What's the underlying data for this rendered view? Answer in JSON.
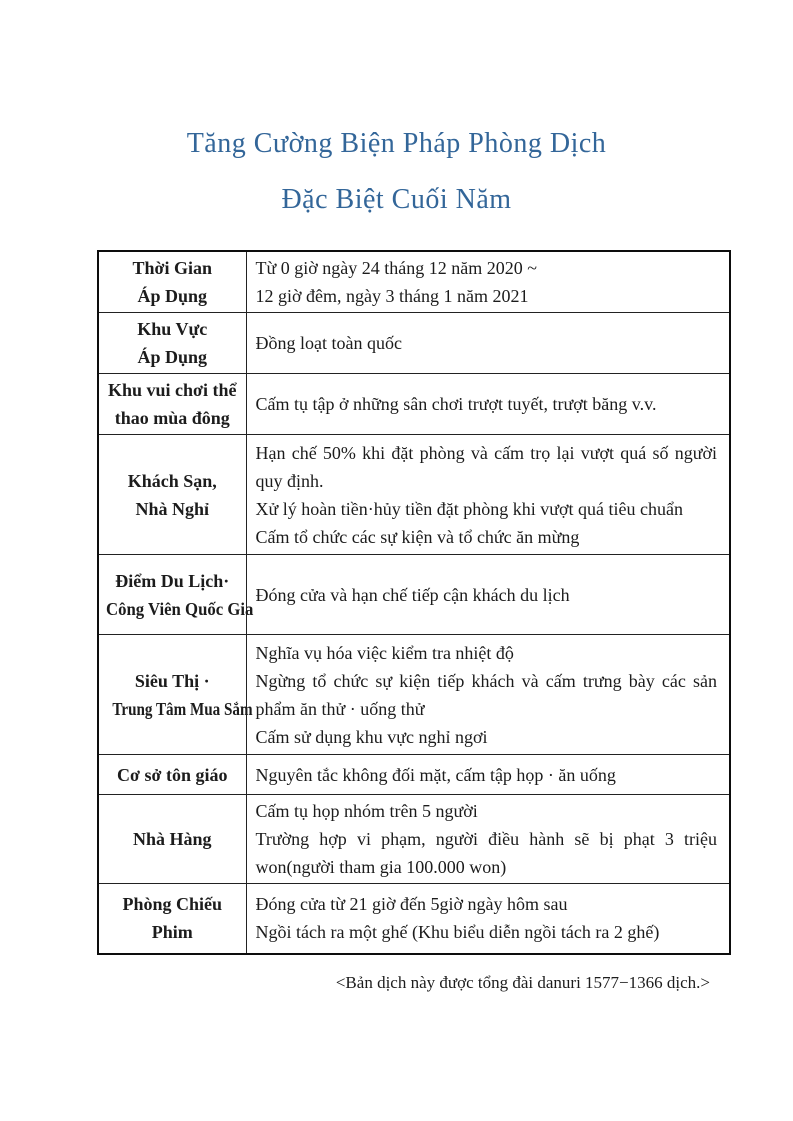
{
  "title": {
    "line1": "Tăng Cường Biện Pháp Phòng Dịch",
    "line2": "Đặc Biệt Cuối Năm",
    "color": "#336699"
  },
  "table": {
    "rows": [
      {
        "label_lines": [
          "Thời Gian",
          "Áp Dụng"
        ],
        "content": [
          "Từ 0 giờ ngày 24 tháng 12 năm 2020 ~",
          "12 giờ đêm, ngày 3 tháng 1 năm 2021"
        ]
      },
      {
        "label_lines": [
          "Khu Vực",
          "Áp Dụng"
        ],
        "content": [
          "Đồng loạt toàn quốc"
        ]
      },
      {
        "label_lines": [
          "Khu vui chơi thể",
          "thao mùa đông"
        ],
        "content": [
          "Cấm tụ tập ở những sân chơi trượt tuyết, trượt băng v.v."
        ]
      },
      {
        "label_lines": [
          "Khách Sạn,",
          "Nhà Nghỉ"
        ],
        "content": [
          "Hạn chế 50% khi đặt phòng và cấm trọ lại vượt quá số người quy định.",
          "Xử lý hoàn tiền·hủy tiền đặt phòng khi vượt quá tiêu chuẩn",
          "Cấm tổ chức các sự kiện và tổ chức ăn mừng"
        ]
      },
      {
        "label_lines": [
          "Điểm Du Lịch·",
          "Công Viên Quốc Gia"
        ],
        "content": [
          "Đóng cửa và hạn chế tiếp cận khách du lịch"
        ]
      },
      {
        "label_lines": [
          "Siêu Thị ·",
          "Trung Tâm Mua Sắm"
        ],
        "content": [
          "Nghĩa vụ hóa việc kiểm tra nhiệt độ",
          "Ngừng tổ chức sự kiện tiếp khách và cấm trưng bày các sản phẩm ăn thử · uống thử",
          "Cấm sử dụng khu vực nghỉ ngơi"
        ]
      },
      {
        "label_lines": [
          "Cơ sở tôn giáo"
        ],
        "content": [
          "Nguyên tắc không đối mặt, cấm tập họp · ăn uống"
        ]
      },
      {
        "label_lines": [
          "Nhà Hàng"
        ],
        "content": [
          "Cấm tụ họp nhóm trên 5 người",
          "Trường hợp vi phạm, người điều hành sẽ bị phạt 3 triệu won(người tham gia 100.000 won)"
        ]
      },
      {
        "label_lines": [
          "Phòng Chiếu",
          "Phim"
        ],
        "content": [
          "Đóng cửa từ 21 giờ đến 5giờ ngày hôm sau",
          "Ngồi tách ra một ghế (Khu biểu diễn ngồi tách ra 2 ghế)"
        ]
      }
    ]
  },
  "footer": {
    "note": "<Bản dịch này được tổng đài danuri 1577−1366 dịch.>"
  }
}
